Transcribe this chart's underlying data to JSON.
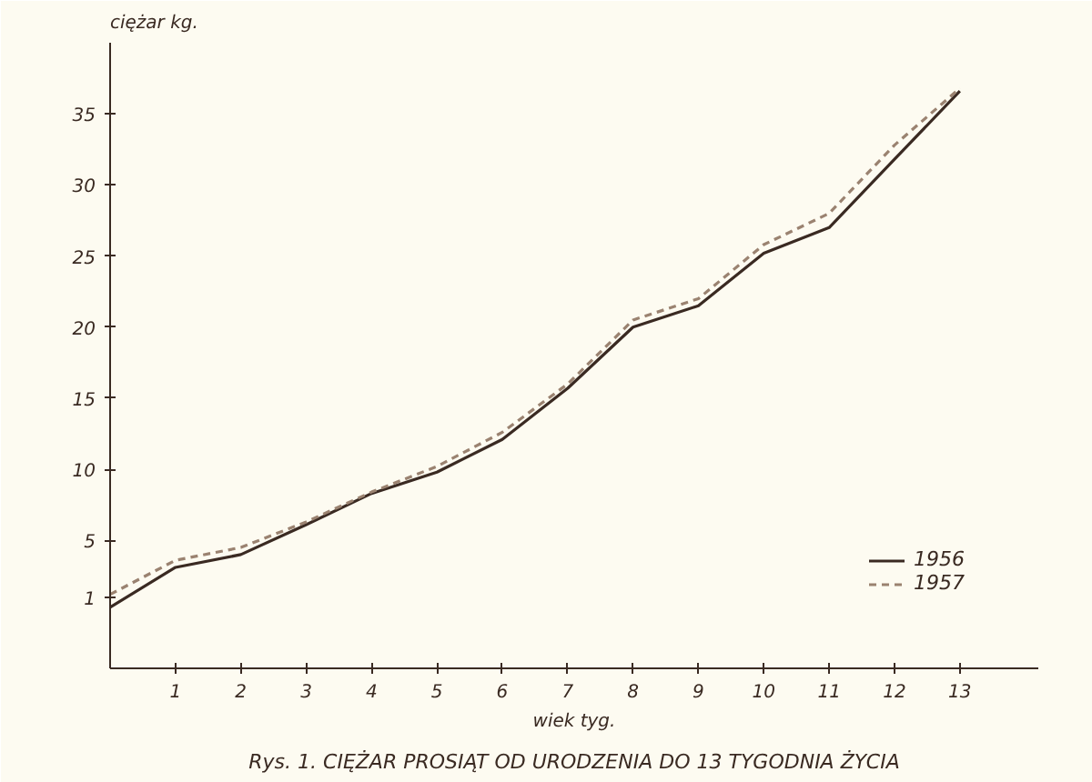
{
  "chart_data": {
    "type": "line",
    "title": "Rys. 1. CIĘŻAR PROSIĄT OD URODZENIA DO 13 TYGODNIA ŻYCIA",
    "ylabel": "ciężar kg.",
    "xlabel": "wiek tyg.",
    "x": [
      0,
      1,
      2,
      3,
      4,
      5,
      6,
      7,
      8,
      9,
      10,
      11,
      12,
      13
    ],
    "series": [
      {
        "name": "1956",
        "color": "#3a2a22",
        "line_style": "solid",
        "values": [
          0.3,
          3.1,
          4.0,
          6.1,
          8.3,
          9.8,
          12.1,
          15.7,
          20.0,
          21.5,
          25.2,
          27.0,
          31.8,
          36.6
        ]
      },
      {
        "name": "1957",
        "color": "#9a8270",
        "line_style": "dashed",
        "values": [
          1.2,
          3.6,
          4.5,
          6.3,
          8.4,
          10.2,
          12.6,
          16.0,
          20.5,
          22.0,
          25.8,
          28.0,
          32.8,
          36.8
        ]
      }
    ],
    "xlim": [
      0,
      14.2
    ],
    "ylim": [
      -4,
      40
    ],
    "xticks": [
      1,
      2,
      3,
      4,
      5,
      6,
      7,
      8,
      9,
      10,
      11,
      12,
      13
    ],
    "yticks": [
      1,
      5,
      10,
      15,
      20,
      25,
      30,
      35
    ],
    "grid": false,
    "legend": "bottom right",
    "marker": "none"
  }
}
